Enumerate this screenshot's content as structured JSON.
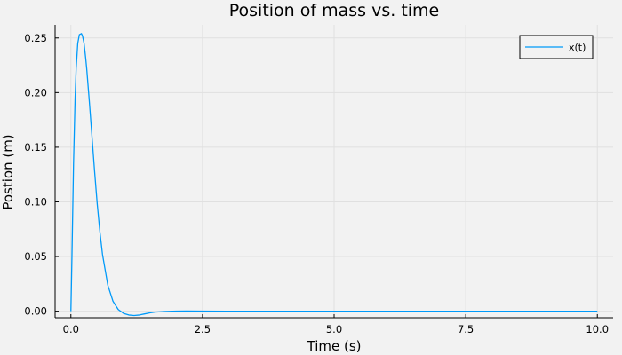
{
  "chart_data": {
    "type": "line",
    "title": "Position of mass vs. time",
    "xlabel": "Time (s)",
    "ylabel": "Postion (m)",
    "xlim": [
      -0.3,
      10.3
    ],
    "ylim": [
      -0.006,
      0.262
    ],
    "xticks": [
      0,
      2.5,
      5,
      7.5,
      10
    ],
    "xtick_labels": [
      "0.0",
      "2.5",
      "5.0",
      "7.5",
      "10.0"
    ],
    "yticks": [
      0,
      0.05,
      0.1,
      0.15,
      0.2,
      0.25
    ],
    "ytick_labels": [
      "0.00",
      "0.05",
      "0.10",
      "0.15",
      "0.20",
      "0.25"
    ],
    "grid": true,
    "legend_position": "top-right",
    "series": [
      {
        "name": "x(t)",
        "color": "#009af9",
        "x": [
          0,
          0.02,
          0.05,
          0.08,
          0.1,
          0.13,
          0.16,
          0.2,
          0.22,
          0.25,
          0.28,
          0.3,
          0.35,
          0.4,
          0.45,
          0.5,
          0.55,
          0.6,
          0.7,
          0.8,
          0.9,
          1.0,
          1.1,
          1.2,
          1.3,
          1.4,
          1.5,
          1.6,
          1.8,
          2.0,
          2.2,
          2.5,
          3.0,
          4.0,
          5.0,
          6.0,
          7.0,
          8.0,
          9.0,
          10.0
        ],
        "values": [
          0,
          0.05,
          0.135,
          0.195,
          0.222,
          0.245,
          0.253,
          0.254,
          0.252,
          0.245,
          0.232,
          0.222,
          0.192,
          0.16,
          0.128,
          0.098,
          0.073,
          0.052,
          0.024,
          0.009,
          0.0015,
          -0.002,
          -0.0035,
          -0.004,
          -0.0035,
          -0.0025,
          -0.0015,
          -0.0008,
          -0.0002,
          0.0001,
          0.00015,
          0.0001,
          0,
          0,
          0,
          0,
          0,
          0,
          0,
          0
        ]
      }
    ]
  }
}
